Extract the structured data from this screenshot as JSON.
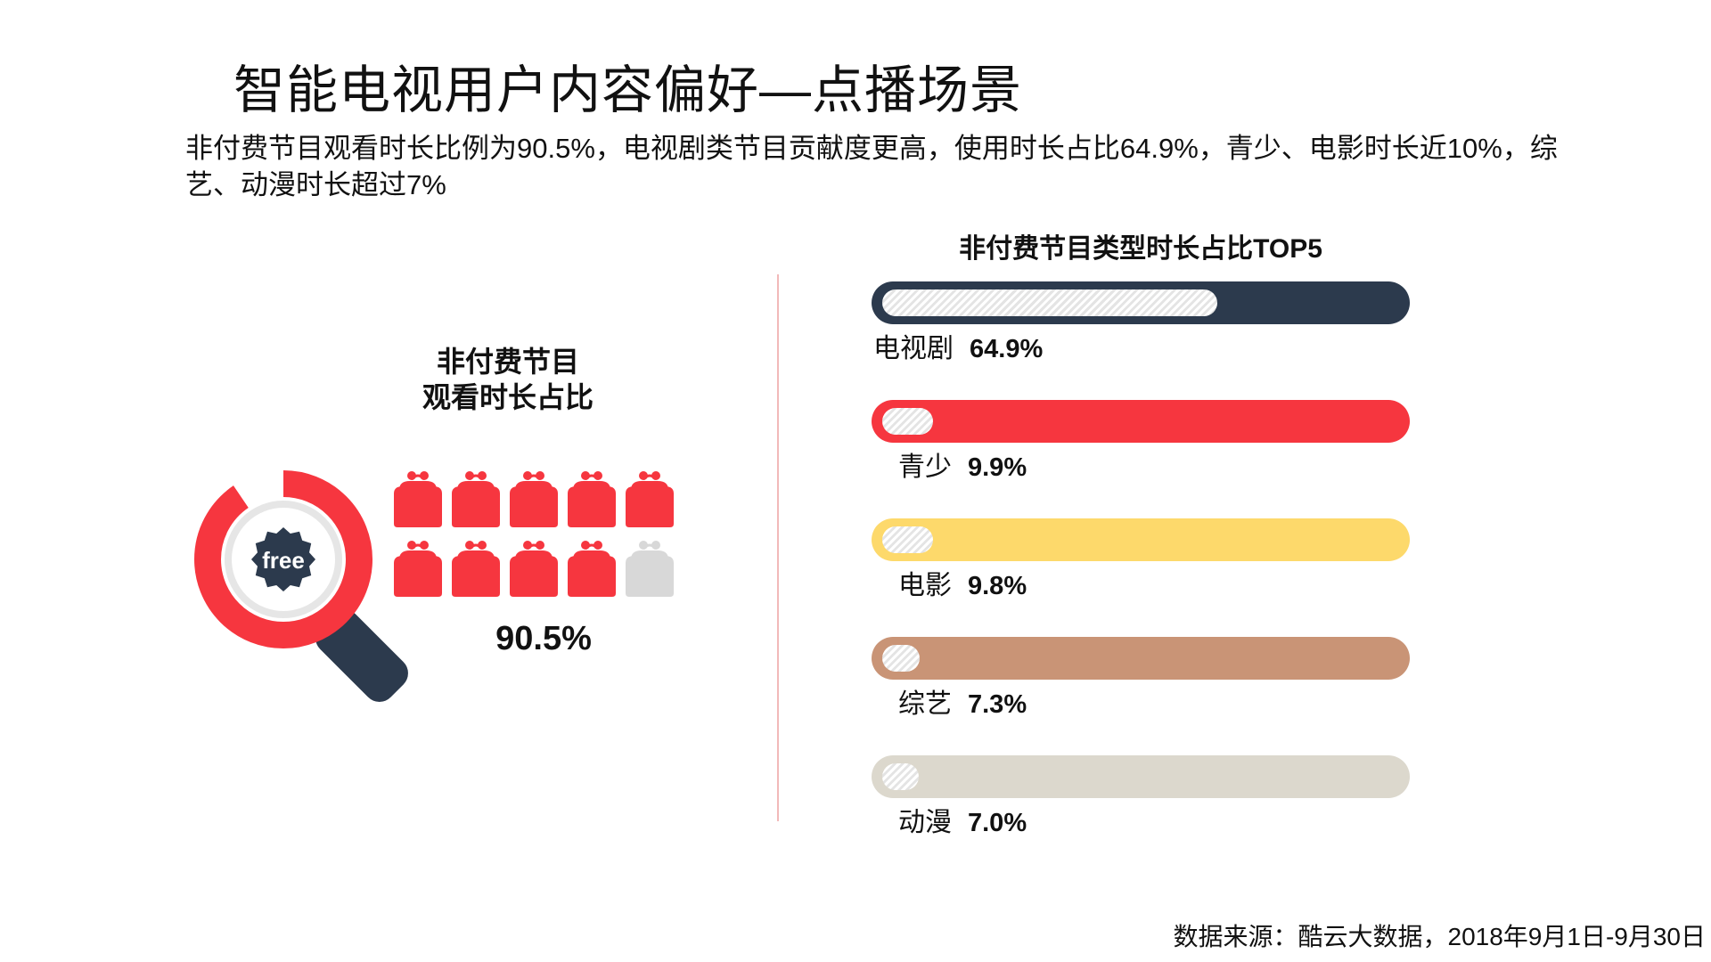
{
  "title": "智能电视用户内容偏好—点播场景",
  "subtitle": "非付费节目观看时长比例为90.5%，电视剧类节目贡献度更高，使用时长占比64.9%，青少、电影时长近10%，综艺、动漫时长超过7%",
  "left_panel": {
    "heading_line1": "非付费节目",
    "heading_line2": "观看时长占比",
    "icon_label": "free",
    "value_label": "90.5%",
    "filled_purses": 9,
    "total_purses": 10,
    "colors": {
      "filled": "#f6363f",
      "empty": "#d8d8d8",
      "ring": "#f6363f",
      "handle": "#2c3a4d",
      "badge": "#2c3a4d"
    }
  },
  "chart_data": {
    "type": "bar",
    "title": "非付费节目类型时长占比TOP5",
    "categories": [
      "电视剧",
      "青少",
      "电影",
      "综艺",
      "动漫"
    ],
    "values": [
      64.9,
      9.9,
      9.8,
      7.3,
      7.0
    ],
    "value_labels": [
      "64.9%",
      "9.9%",
      "9.8%",
      "7.3%",
      "7.0%"
    ],
    "xlim": [
      0,
      100
    ],
    "track_colors": [
      "#2c3a4d",
      "#f6363f",
      "#fdd96b",
      "#c99476",
      "#dcd8cd"
    ]
  },
  "source": "数据来源：酷云大数据，2018年9月1日-9月30日"
}
